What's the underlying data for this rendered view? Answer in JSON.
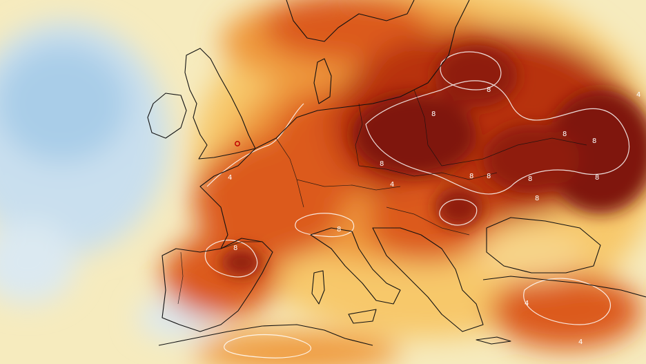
{
  "map": {
    "colors": {
      "ocean_cool": "#a9cde8",
      "ocean_pale": "#dbe9f1",
      "near_zero": "#f6ebbe",
      "warm_1": "#f7c86a",
      "warm_2": "#ef9a3c",
      "warm_3": "#dc5a1e",
      "warm_4": "#b8300f",
      "hot": "#7f1408",
      "contour": "#ffffff",
      "coastline": "#111111"
    },
    "contour_labels": [
      {
        "text": "8"
      },
      {
        "text": "8"
      },
      {
        "text": "8"
      },
      {
        "text": "8"
      },
      {
        "text": "8"
      },
      {
        "text": "8"
      },
      {
        "text": "8"
      },
      {
        "text": "8"
      },
      {
        "text": "8"
      },
      {
        "text": "8"
      },
      {
        "text": "8"
      },
      {
        "text": "8"
      },
      {
        "text": "4"
      },
      {
        "text": "4"
      },
      {
        "text": "4"
      },
      {
        "text": "4"
      },
      {
        "text": "4"
      }
    ]
  }
}
